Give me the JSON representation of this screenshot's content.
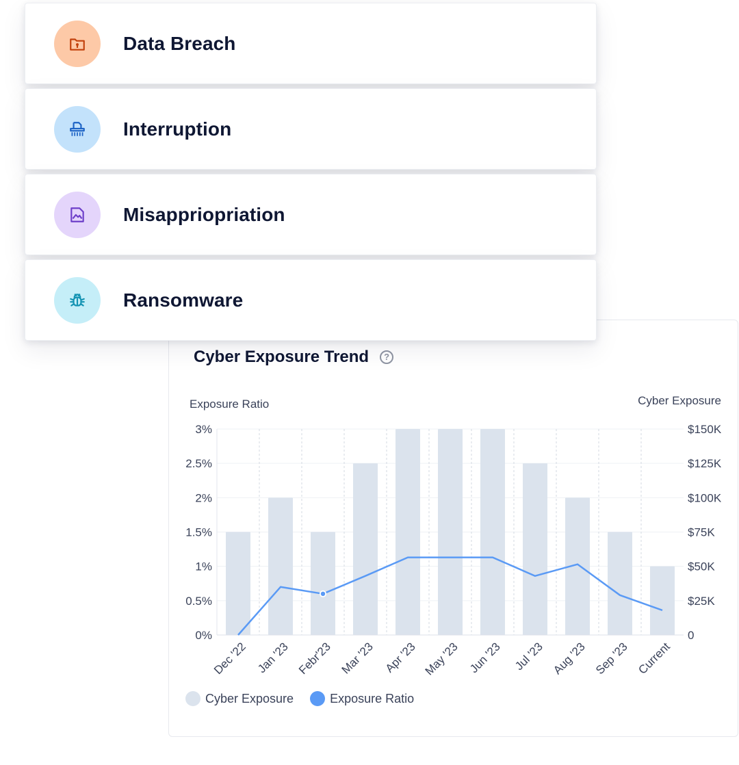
{
  "risks": [
    {
      "label": "Data Breach",
      "icon": "folder-lock-icon",
      "bg": "#fdc9a7",
      "fg": "#c2410c"
    },
    {
      "label": "Interruption",
      "icon": "shredder-icon",
      "bg": "#c3e2fb",
      "fg": "#1d63c5"
    },
    {
      "label": "Misappriopriation",
      "icon": "image-file-icon",
      "bg": "#e4d5fb",
      "fg": "#6d3fc9"
    },
    {
      "label": "Ransomware",
      "icon": "bug-icon",
      "bg": "#c5eef8",
      "fg": "#1393b3"
    }
  ],
  "chart": {
    "title": "Cyber Exposure Trend",
    "help": "?",
    "left_axis_title": "Exposure Ratio",
    "right_axis_title": "Cyber Exposure",
    "legend": [
      {
        "label": "Cyber Exposure",
        "color": "#dbe3ed"
      },
      {
        "label": "Exposure Ratio",
        "color": "#5a9af5"
      }
    ]
  },
  "chart_data": {
    "type": "bar",
    "categories": [
      "Dec '22",
      "Jan '23",
      "Febr'23",
      "Mar '23",
      "Apr '23",
      "May '23",
      "Jun '23",
      "Jul '23",
      "Aug '23",
      "Sep '23",
      "Current"
    ],
    "series": [
      {
        "name": "Cyber Exposure",
        "type": "bar",
        "axis": "right",
        "color": "#dbe3ed",
        "values": [
          75000,
          100000,
          75000,
          125000,
          150000,
          150000,
          150000,
          125000,
          100000,
          75000,
          50000
        ]
      },
      {
        "name": "Exposure Ratio",
        "type": "line",
        "axis": "left",
        "color": "#5a9af5",
        "values": [
          0,
          0.7,
          0.6,
          0.86,
          1.13,
          1.13,
          1.13,
          0.86,
          1.03,
          0.58,
          0.36
        ]
      }
    ],
    "y_left_ticks": [
      "0%",
      "0.5%",
      "1%",
      "1.5%",
      "2%",
      "2.5%",
      "3%"
    ],
    "y_left_range": [
      0,
      3
    ],
    "y_right_ticks": [
      "0",
      "$25K",
      "$50K",
      "$75K",
      "$100K",
      "$125K",
      "$150K"
    ],
    "y_right_range": [
      0,
      150000
    ],
    "highlighted_point": "Febr'23",
    "grid": true,
    "legend_position": "bottom-left"
  }
}
